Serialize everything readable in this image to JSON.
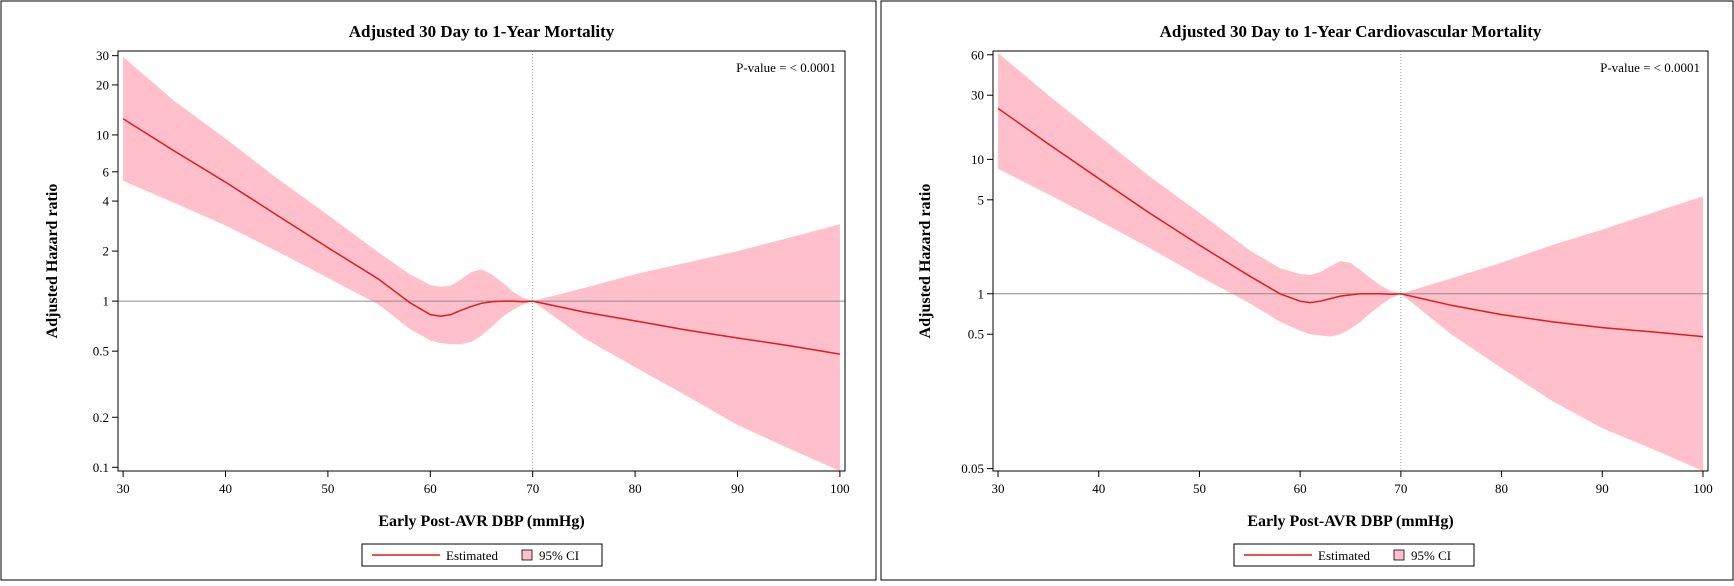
{
  "colors": {
    "estimate": "#e41a1c",
    "ci_fill": "#ffc0cb",
    "reference": "#8c8c8c",
    "frame": "#000000"
  },
  "legend": {
    "estimated_label": "Estimated",
    "ci_label": "95% CI"
  },
  "chart_data": [
    {
      "type": "line",
      "title": "Adjusted 30 Day to 1-Year Mortality",
      "xlabel": "Early Post-AVR DBP (mmHg)",
      "ylabel": "Adjusted Hazard ratio",
      "y_scale": "log",
      "xlim": [
        29.5,
        100.5
      ],
      "ylim": [
        0.095,
        32
      ],
      "x_ticks": [
        30,
        40,
        50,
        60,
        70,
        80,
        90,
        100
      ],
      "y_ticks": [
        0.1,
        0.2,
        0.5,
        1,
        2,
        4,
        6,
        10,
        20,
        30
      ],
      "y_tick_labels": [
        "0.1",
        "0.2",
        "0.5",
        "1",
        "2",
        "4",
        "6",
        "10",
        "20",
        "30"
      ],
      "reference_y": 1,
      "reference_x": 70,
      "annotation": "P-value =   < 0.0001",
      "legend_position": "bottom",
      "x": [
        30,
        35,
        40,
        45,
        50,
        55,
        58,
        60,
        61,
        62,
        63,
        64,
        65,
        66,
        67,
        68,
        69,
        70,
        75,
        80,
        85,
        90,
        95,
        100
      ],
      "series": [
        {
          "name": "Estimated",
          "values": [
            12.5,
            8.0,
            5.2,
            3.3,
            2.1,
            1.35,
            0.98,
            0.83,
            0.81,
            0.83,
            0.88,
            0.93,
            0.97,
            0.99,
            1.0,
            1.0,
            0.99,
            1.0,
            0.86,
            0.76,
            0.67,
            0.6,
            0.54,
            0.48
          ]
        },
        {
          "name": "95% CI lower",
          "values": [
            5.3,
            3.9,
            2.85,
            2.0,
            1.38,
            0.95,
            0.68,
            0.58,
            0.56,
            0.55,
            0.55,
            0.57,
            0.62,
            0.7,
            0.8,
            0.88,
            0.95,
            1.0,
            0.6,
            0.4,
            0.27,
            0.18,
            0.13,
            0.095
          ]
        },
        {
          "name": "95% CI upper",
          "values": [
            29.5,
            16.0,
            9.5,
            5.5,
            3.3,
            1.95,
            1.45,
            1.25,
            1.22,
            1.24,
            1.35,
            1.5,
            1.55,
            1.45,
            1.3,
            1.15,
            1.05,
            1.0,
            1.2,
            1.45,
            1.7,
            2.0,
            2.4,
            2.9
          ]
        }
      ]
    },
    {
      "type": "line",
      "title": "Adjusted 30 Day to 1-Year Cardiovascular Mortality",
      "xlabel": "Early Post-AVR DBP (mmHg)",
      "ylabel": "Adjusted Hazard ratio",
      "y_scale": "log",
      "xlim": [
        29.5,
        100.5
      ],
      "ylim": [
        0.048,
        64
      ],
      "x_ticks": [
        30,
        40,
        50,
        60,
        70,
        80,
        90,
        100
      ],
      "y_ticks": [
        0.05,
        0.5,
        1,
        5,
        10,
        30,
        60
      ],
      "y_tick_labels": [
        "0.05",
        "0.5",
        "1",
        "5",
        "10",
        "30",
        "60"
      ],
      "reference_y": 1,
      "reference_x": 70,
      "annotation": "P-value =   < 0.0001",
      "legend_position": "bottom",
      "x": [
        30,
        35,
        40,
        45,
        50,
        55,
        58,
        60,
        61,
        62,
        63,
        64,
        65,
        66,
        67,
        68,
        69,
        70,
        75,
        80,
        85,
        90,
        95,
        100
      ],
      "series": [
        {
          "name": "Estimated",
          "values": [
            24,
            13,
            7.2,
            4.0,
            2.3,
            1.35,
            1.0,
            0.88,
            0.86,
            0.88,
            0.92,
            0.96,
            0.98,
            1.0,
            1.0,
            1.0,
            0.99,
            1.0,
            0.82,
            0.7,
            0.62,
            0.56,
            0.52,
            0.48
          ]
        },
        {
          "name": "95% CI lower",
          "values": [
            8.5,
            5.5,
            3.5,
            2.2,
            1.35,
            0.85,
            0.62,
            0.53,
            0.5,
            0.49,
            0.48,
            0.5,
            0.55,
            0.62,
            0.72,
            0.82,
            0.93,
            1.0,
            0.5,
            0.28,
            0.16,
            0.1,
            0.07,
            0.048
          ]
        },
        {
          "name": "95% CI upper",
          "values": [
            62,
            30,
            15,
            7.5,
            4.0,
            2.1,
            1.55,
            1.4,
            1.38,
            1.45,
            1.6,
            1.75,
            1.7,
            1.5,
            1.3,
            1.15,
            1.05,
            1.0,
            1.3,
            1.7,
            2.3,
            3.0,
            4.0,
            5.3
          ]
        }
      ]
    }
  ]
}
